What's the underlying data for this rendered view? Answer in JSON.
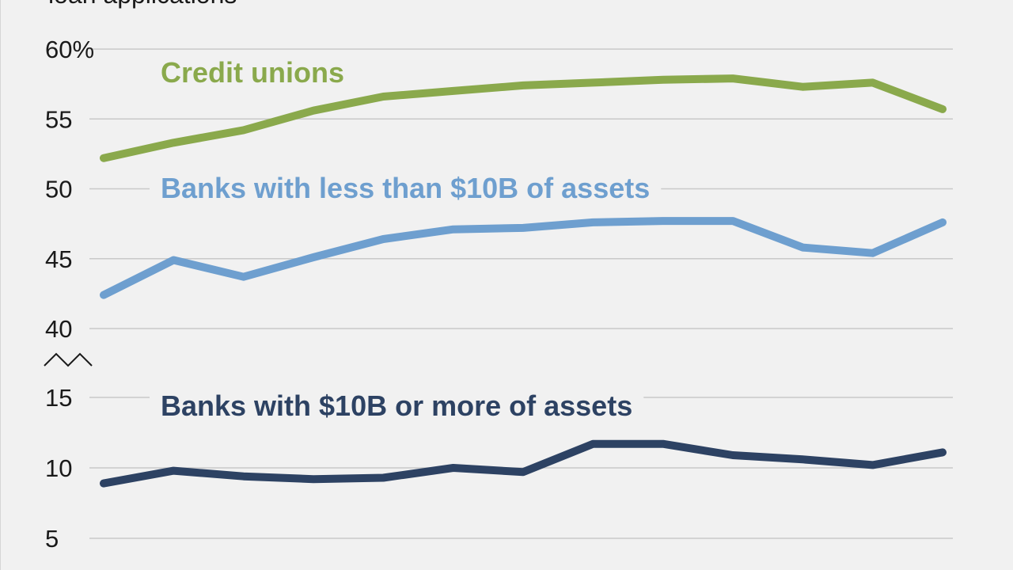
{
  "chart_data": {
    "type": "line",
    "title": "loan applications",
    "xlabel": "",
    "ylabel": "",
    "y_axis": {
      "upper_segment": {
        "range": [
          40,
          60
        ],
        "ticks": [
          "60%",
          "55",
          "50",
          "45",
          "40"
        ]
      },
      "lower_segment": {
        "range": [
          5,
          15
        ],
        "ticks": [
          "15",
          "10",
          "5"
        ]
      },
      "axis_break": true
    },
    "grid": true,
    "legend": "inline labels",
    "series": [
      {
        "name": "Credit unions",
        "color": "#8aa94c",
        "segment": "upper",
        "values": [
          52.2,
          53.3,
          54.2,
          55.6,
          56.6,
          57.0,
          57.4,
          57.6,
          57.8,
          57.9,
          57.3,
          57.6,
          55.7
        ]
      },
      {
        "name": "Banks with less than $10B of assets",
        "color": "#6e9fcf",
        "segment": "upper",
        "values": [
          42.4,
          44.9,
          43.7,
          45.1,
          46.4,
          47.1,
          47.2,
          47.6,
          47.7,
          47.7,
          45.8,
          45.4,
          47.6
        ]
      },
      {
        "name": "Banks with $10B or more of assets",
        "color": "#2d4263",
        "segment": "lower",
        "values": [
          8.9,
          9.8,
          9.4,
          9.2,
          9.3,
          10.0,
          9.7,
          11.7,
          11.7,
          10.9,
          10.6,
          10.2,
          11.1
        ]
      }
    ]
  }
}
